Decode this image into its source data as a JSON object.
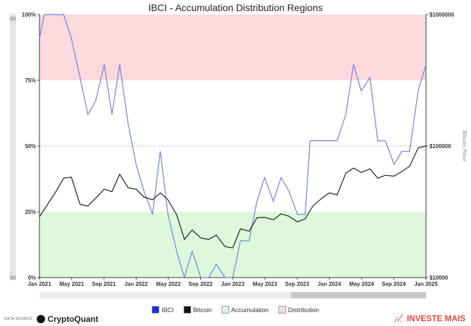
{
  "title": "IBCI - Accumulation Distribution Regions",
  "footer": {
    "source_label": "DATA SOURCE",
    "brand": "CryptoQuant",
    "watermark": "INVESTE MAIS"
  },
  "colors": {
    "ibci": "#6f7ddc",
    "bitcoin": "#1a1a1a",
    "accumulation": "#dff8dc",
    "distribution": "#fbdadd"
  },
  "chart_data": {
    "type": "line",
    "title": "IBCI - Accumulation Distribution Regions",
    "y_left": {
      "ticks": [
        "0%",
        "25%",
        "50%",
        "75%",
        "100%"
      ],
      "range": [
        0,
        100
      ]
    },
    "y_right": {
      "label": "Bitcoin Price",
      "scale": "log",
      "ticks": [
        "$10000",
        "$100000",
        "$1000000"
      ],
      "range": [
        10000,
        1000000
      ]
    },
    "x_ticks": [
      "Jan 2021",
      "May 2021",
      "Sep 2021",
      "Jan 2022",
      "May 2022",
      "Sep 2022",
      "Jan 2023",
      "May 2023",
      "Sep 2023",
      "Jan 2024",
      "May 2024",
      "Sep 2024",
      "Jan 2025"
    ],
    "x_range": [
      2021.0,
      2025.0
    ],
    "regions": [
      {
        "name": "Accumulation",
        "from": 0,
        "to": 25
      },
      {
        "name": "Distribution",
        "from": 75,
        "to": 100
      }
    ],
    "legend": [
      "IBCI",
      "Bitcoin",
      "Accumulation",
      "Distribution"
    ],
    "series": [
      {
        "name": "IBCI",
        "axis": "left",
        "points": [
          [
            2021.0,
            91
          ],
          [
            2021.05,
            100
          ],
          [
            2021.17,
            100
          ],
          [
            2021.25,
            100
          ],
          [
            2021.33,
            91
          ],
          [
            2021.42,
            76
          ],
          [
            2021.5,
            62
          ],
          [
            2021.58,
            67
          ],
          [
            2021.67,
            81
          ],
          [
            2021.75,
            62
          ],
          [
            2021.83,
            81
          ],
          [
            2021.92,
            58
          ],
          [
            2022.0,
            43
          ],
          [
            2022.08,
            33
          ],
          [
            2022.17,
            24
          ],
          [
            2022.25,
            48
          ],
          [
            2022.33,
            24
          ],
          [
            2022.42,
            10
          ],
          [
            2022.5,
            0
          ],
          [
            2022.58,
            10
          ],
          [
            2022.67,
            0
          ],
          [
            2022.75,
            0
          ],
          [
            2022.83,
            5
          ],
          [
            2022.92,
            0
          ],
          [
            2023.0,
            0
          ],
          [
            2023.08,
            14
          ],
          [
            2023.17,
            14
          ],
          [
            2023.25,
            29
          ],
          [
            2023.33,
            38
          ],
          [
            2023.42,
            29
          ],
          [
            2023.5,
            38
          ],
          [
            2023.58,
            33
          ],
          [
            2023.67,
            24
          ],
          [
            2023.75,
            24
          ],
          [
            2023.8,
            52
          ],
          [
            2023.92,
            52
          ],
          [
            2024.0,
            52
          ],
          [
            2024.08,
            52
          ],
          [
            2024.17,
            62
          ],
          [
            2024.25,
            81
          ],
          [
            2024.33,
            71
          ],
          [
            2024.42,
            76
          ],
          [
            2024.5,
            52
          ],
          [
            2024.58,
            52
          ],
          [
            2024.67,
            43
          ],
          [
            2024.75,
            48
          ],
          [
            2024.83,
            48
          ],
          [
            2024.92,
            71
          ],
          [
            2025.0,
            81
          ]
        ]
      },
      {
        "name": "Bitcoin",
        "axis": "right",
        "points": [
          [
            2021.0,
            29000
          ],
          [
            2021.05,
            33000
          ],
          [
            2021.17,
            45000
          ],
          [
            2021.25,
            57000
          ],
          [
            2021.33,
            58000
          ],
          [
            2021.42,
            36000
          ],
          [
            2021.5,
            35000
          ],
          [
            2021.58,
            40000
          ],
          [
            2021.67,
            47000
          ],
          [
            2021.75,
            45000
          ],
          [
            2021.83,
            61000
          ],
          [
            2021.92,
            48000
          ],
          [
            2022.0,
            47000
          ],
          [
            2022.08,
            41000
          ],
          [
            2022.17,
            39000
          ],
          [
            2022.25,
            44000
          ],
          [
            2022.33,
            39000
          ],
          [
            2022.42,
            30000
          ],
          [
            2022.5,
            19500
          ],
          [
            2022.58,
            23000
          ],
          [
            2022.67,
            20000
          ],
          [
            2022.75,
            19500
          ],
          [
            2022.83,
            21000
          ],
          [
            2022.92,
            17200
          ],
          [
            2023.0,
            16800
          ],
          [
            2023.08,
            23500
          ],
          [
            2023.17,
            22500
          ],
          [
            2023.25,
            28500
          ],
          [
            2023.33,
            28700
          ],
          [
            2023.42,
            27500
          ],
          [
            2023.5,
            30500
          ],
          [
            2023.58,
            29300
          ],
          [
            2023.67,
            26500
          ],
          [
            2023.75,
            28000
          ],
          [
            2023.83,
            35000
          ],
          [
            2023.92,
            40000
          ],
          [
            2024.0,
            44000
          ],
          [
            2024.08,
            42500
          ],
          [
            2024.17,
            62000
          ],
          [
            2024.25,
            68000
          ],
          [
            2024.33,
            63000
          ],
          [
            2024.42,
            67000
          ],
          [
            2024.5,
            57000
          ],
          [
            2024.58,
            60000
          ],
          [
            2024.67,
            59000
          ],
          [
            2024.75,
            64000
          ],
          [
            2024.83,
            70000
          ],
          [
            2024.92,
            97000
          ],
          [
            2025.0,
            100000
          ]
        ]
      }
    ]
  }
}
